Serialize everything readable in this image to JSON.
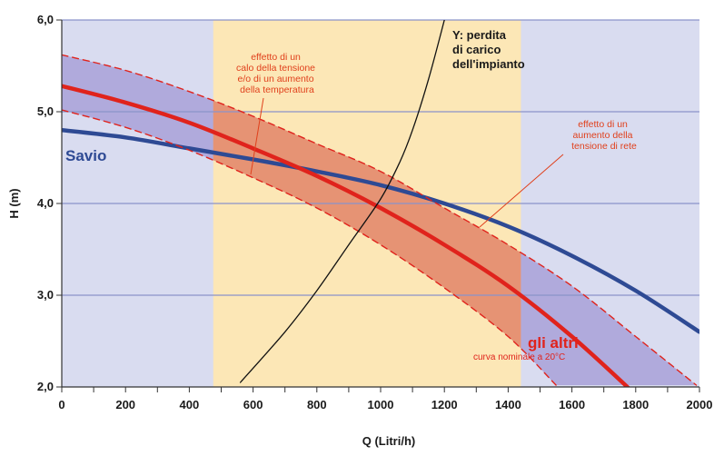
{
  "chart_data": {
    "type": "line",
    "xlabel": "Q (Litri/h)",
    "ylabel": "H (m)",
    "xlim": [
      0,
      2000
    ],
    "ylim": [
      2.0,
      6.0
    ],
    "x_ticks": [
      "0",
      "200",
      "400",
      "600",
      "800",
      "1000",
      "1200",
      "1400",
      "1600",
      "1800",
      "2000"
    ],
    "x_tick_values": [
      0,
      200,
      400,
      600,
      800,
      1000,
      1200,
      1400,
      1600,
      1800,
      2000
    ],
    "y_ticks": [
      "2,0",
      "3,0",
      "4,0",
      "5,0",
      "6,0"
    ],
    "y_tick_values": [
      2.0,
      3.0,
      4.0,
      5.0,
      6.0
    ],
    "grid": "horizontal",
    "shaded_range": {
      "x_from": 475,
      "x_to": 1440,
      "color": "#fce7b6"
    },
    "background_color": "#d9dcf0",
    "series": [
      {
        "name": "Savio",
        "color": "#2e4a94",
        "x": [
          0,
          200,
          400,
          600,
          800,
          1000,
          1200,
          1400,
          1600,
          1800,
          2000
        ],
        "y": [
          4.8,
          4.72,
          4.6,
          4.48,
          4.35,
          4.2,
          4.0,
          3.75,
          3.43,
          3.05,
          2.6
        ]
      },
      {
        "name": "gli altri",
        "subtitle": "curva nominale a 20°C",
        "color": "#e0231c",
        "x": [
          0,
          200,
          400,
          600,
          800,
          1000,
          1200,
          1400,
          1600,
          1780
        ],
        "y": [
          5.28,
          5.1,
          4.88,
          4.6,
          4.3,
          3.95,
          3.55,
          3.1,
          2.55,
          1.98
        ]
      },
      {
        "name": "upper",
        "color": "#e0231c",
        "dashed": true,
        "x": [
          0,
          200,
          400,
          600,
          800,
          1000,
          1200,
          1400,
          1600,
          1800,
          1990
        ],
        "y": [
          5.62,
          5.45,
          5.22,
          4.95,
          4.65,
          4.35,
          3.95,
          3.55,
          3.1,
          2.55,
          2.02
        ]
      },
      {
        "name": "lower",
        "color": "#e0231c",
        "dashed": true,
        "x": [
          0,
          200,
          400,
          600,
          800,
          1000,
          1200,
          1400,
          1550
        ],
        "y": [
          5.02,
          4.83,
          4.58,
          4.28,
          3.95,
          3.55,
          3.08,
          2.55,
          2.02
        ]
      },
      {
        "name": "Y",
        "color": "#111111",
        "x": [
          560,
          700,
          800,
          900,
          1000,
          1060,
          1100,
          1150,
          1200
        ],
        "y": [
          2.05,
          2.6,
          3.05,
          3.55,
          4.05,
          4.45,
          4.8,
          5.35,
          6.0
        ]
      }
    ]
  },
  "annotations": {
    "left_effect": [
      "effetto di un",
      "calo della tensione",
      "e/o di un aumento",
      "della temperatura"
    ],
    "right_effect": [
      "effetto di un",
      "aumento della",
      "tensione di rete"
    ],
    "loss": [
      "Y: perdita",
      "di carico",
      "dell'impianto"
    ],
    "savio": "Savio",
    "altri": "gli altri",
    "altri_sub": "curva nominale a 20°C"
  }
}
